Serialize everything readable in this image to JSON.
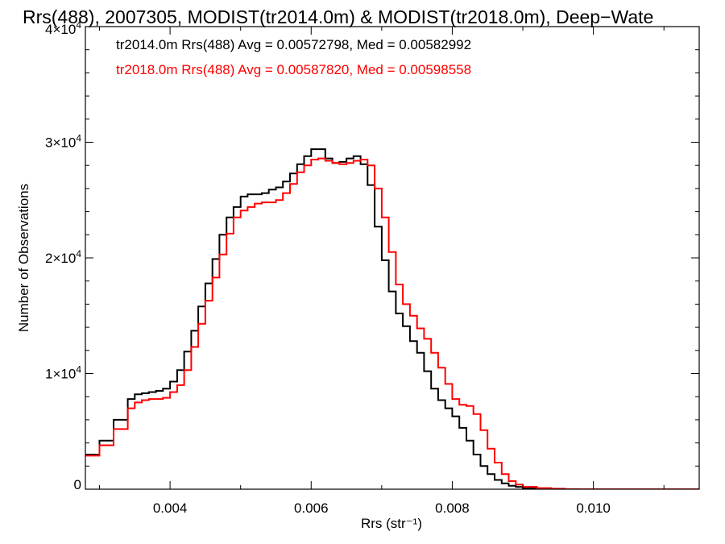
{
  "chart_data": {
    "type": "line",
    "title": "Rrs(488), 2007305, MODIST(tr2014.0m) & MODIST(tr2018.0m), Deep−Wate",
    "xlabel": "Rrs (str⁻¹)",
    "ylabel": "Number of Observations",
    "xlim": [
      0.0028,
      0.0115
    ],
    "ylim": [
      0,
      40000
    ],
    "xticks": [
      {
        "value": 0.004,
        "label": "0.004"
      },
      {
        "value": 0.006,
        "label": "0.006"
      },
      {
        "value": 0.008,
        "label": "0.008"
      },
      {
        "value": 0.01,
        "label": "0.010"
      }
    ],
    "yticks": [
      {
        "value": 0,
        "base": "0",
        "exp": ""
      },
      {
        "value": 10000,
        "base": "1×10",
        "exp": "4"
      },
      {
        "value": 20000,
        "base": "2×10",
        "exp": "4"
      },
      {
        "value": 30000,
        "base": "3×10",
        "exp": "4"
      },
      {
        "value": 40000,
        "base": "4×10",
        "exp": "4"
      }
    ],
    "grid": false,
    "legend_position": "top-left",
    "series": [
      {
        "name": "tr2014.0m Rrs(488) Avg = 0.00572798, Med = 0.00582992",
        "color": "#000000",
        "x": [
          0.0028,
          0.003,
          0.0032,
          0.0034,
          0.0035,
          0.0036,
          0.0037,
          0.0038,
          0.0039,
          0.004,
          0.0041,
          0.0042,
          0.0043,
          0.0044,
          0.0045,
          0.0046,
          0.0047,
          0.0048,
          0.0049,
          0.005,
          0.0051,
          0.0052,
          0.0053,
          0.0054,
          0.0055,
          0.0056,
          0.0057,
          0.0058,
          0.0059,
          0.006,
          0.0061,
          0.0062,
          0.0063,
          0.0064,
          0.0065,
          0.0066,
          0.0067,
          0.0068,
          0.0069,
          0.007,
          0.0071,
          0.0072,
          0.0073,
          0.0074,
          0.0075,
          0.0076,
          0.0077,
          0.0078,
          0.0079,
          0.008,
          0.0081,
          0.0082,
          0.0083,
          0.0084,
          0.0085,
          0.0086,
          0.0087,
          0.0088,
          0.0089,
          0.009,
          0.0092,
          0.0094,
          0.0096,
          0.0098,
          0.01,
          0.0105,
          0.011,
          0.0115
        ],
        "y": [
          3000,
          4200,
          6000,
          7800,
          8200,
          8300,
          8400,
          8500,
          8700,
          9300,
          10300,
          11900,
          13700,
          15800,
          17800,
          19900,
          22000,
          23500,
          24400,
          25300,
          25500,
          25500,
          25600,
          25900,
          26100,
          26600,
          27300,
          28100,
          28800,
          29400,
          29400,
          28600,
          28200,
          28300,
          28600,
          28800,
          28100,
          26300,
          22700,
          19800,
          17100,
          15200,
          14100,
          12800,
          11800,
          10200,
          8700,
          7700,
          7000,
          6300,
          5300,
          4200,
          3000,
          2000,
          1300,
          800,
          500,
          300,
          200,
          100,
          50,
          20,
          0,
          0,
          0,
          0,
          0,
          0
        ]
      },
      {
        "name": "tr2018.0m Rrs(488) Avg = 0.00587820, Med = 0.00598558",
        "color": "#ff0000",
        "x": [
          0.0028,
          0.003,
          0.0032,
          0.0034,
          0.0035,
          0.0036,
          0.0037,
          0.0038,
          0.0039,
          0.004,
          0.0041,
          0.0042,
          0.0043,
          0.0044,
          0.0045,
          0.0046,
          0.0047,
          0.0048,
          0.0049,
          0.005,
          0.0051,
          0.0052,
          0.0053,
          0.0054,
          0.0055,
          0.0056,
          0.0057,
          0.0058,
          0.0059,
          0.006,
          0.0061,
          0.0062,
          0.0063,
          0.0064,
          0.0065,
          0.0066,
          0.0067,
          0.0068,
          0.0069,
          0.007,
          0.0071,
          0.0072,
          0.0073,
          0.0074,
          0.0075,
          0.0076,
          0.0077,
          0.0078,
          0.0079,
          0.008,
          0.0081,
          0.0082,
          0.0083,
          0.0084,
          0.0085,
          0.0086,
          0.0087,
          0.0088,
          0.0089,
          0.009,
          0.0092,
          0.0094,
          0.0096,
          0.0098,
          0.01,
          0.0105,
          0.011,
          0.0115
        ],
        "y": [
          2900,
          3800,
          5200,
          7000,
          7500,
          7700,
          7800,
          7800,
          7900,
          8400,
          9000,
          10300,
          12300,
          14300,
          16300,
          18300,
          20300,
          22100,
          23500,
          24100,
          24400,
          24700,
          24800,
          24800,
          25000,
          25600,
          26400,
          27400,
          28000,
          28500,
          28600,
          28400,
          28200,
          28100,
          28200,
          28400,
          28500,
          28000,
          26000,
          23500,
          20500,
          17700,
          16000,
          15000,
          13900,
          13000,
          11800,
          10500,
          9100,
          7800,
          7300,
          7200,
          6500,
          5100,
          3500,
          2300,
          1300,
          700,
          400,
          200,
          100,
          40,
          10,
          0,
          0,
          0,
          0,
          0
        ]
      }
    ]
  }
}
